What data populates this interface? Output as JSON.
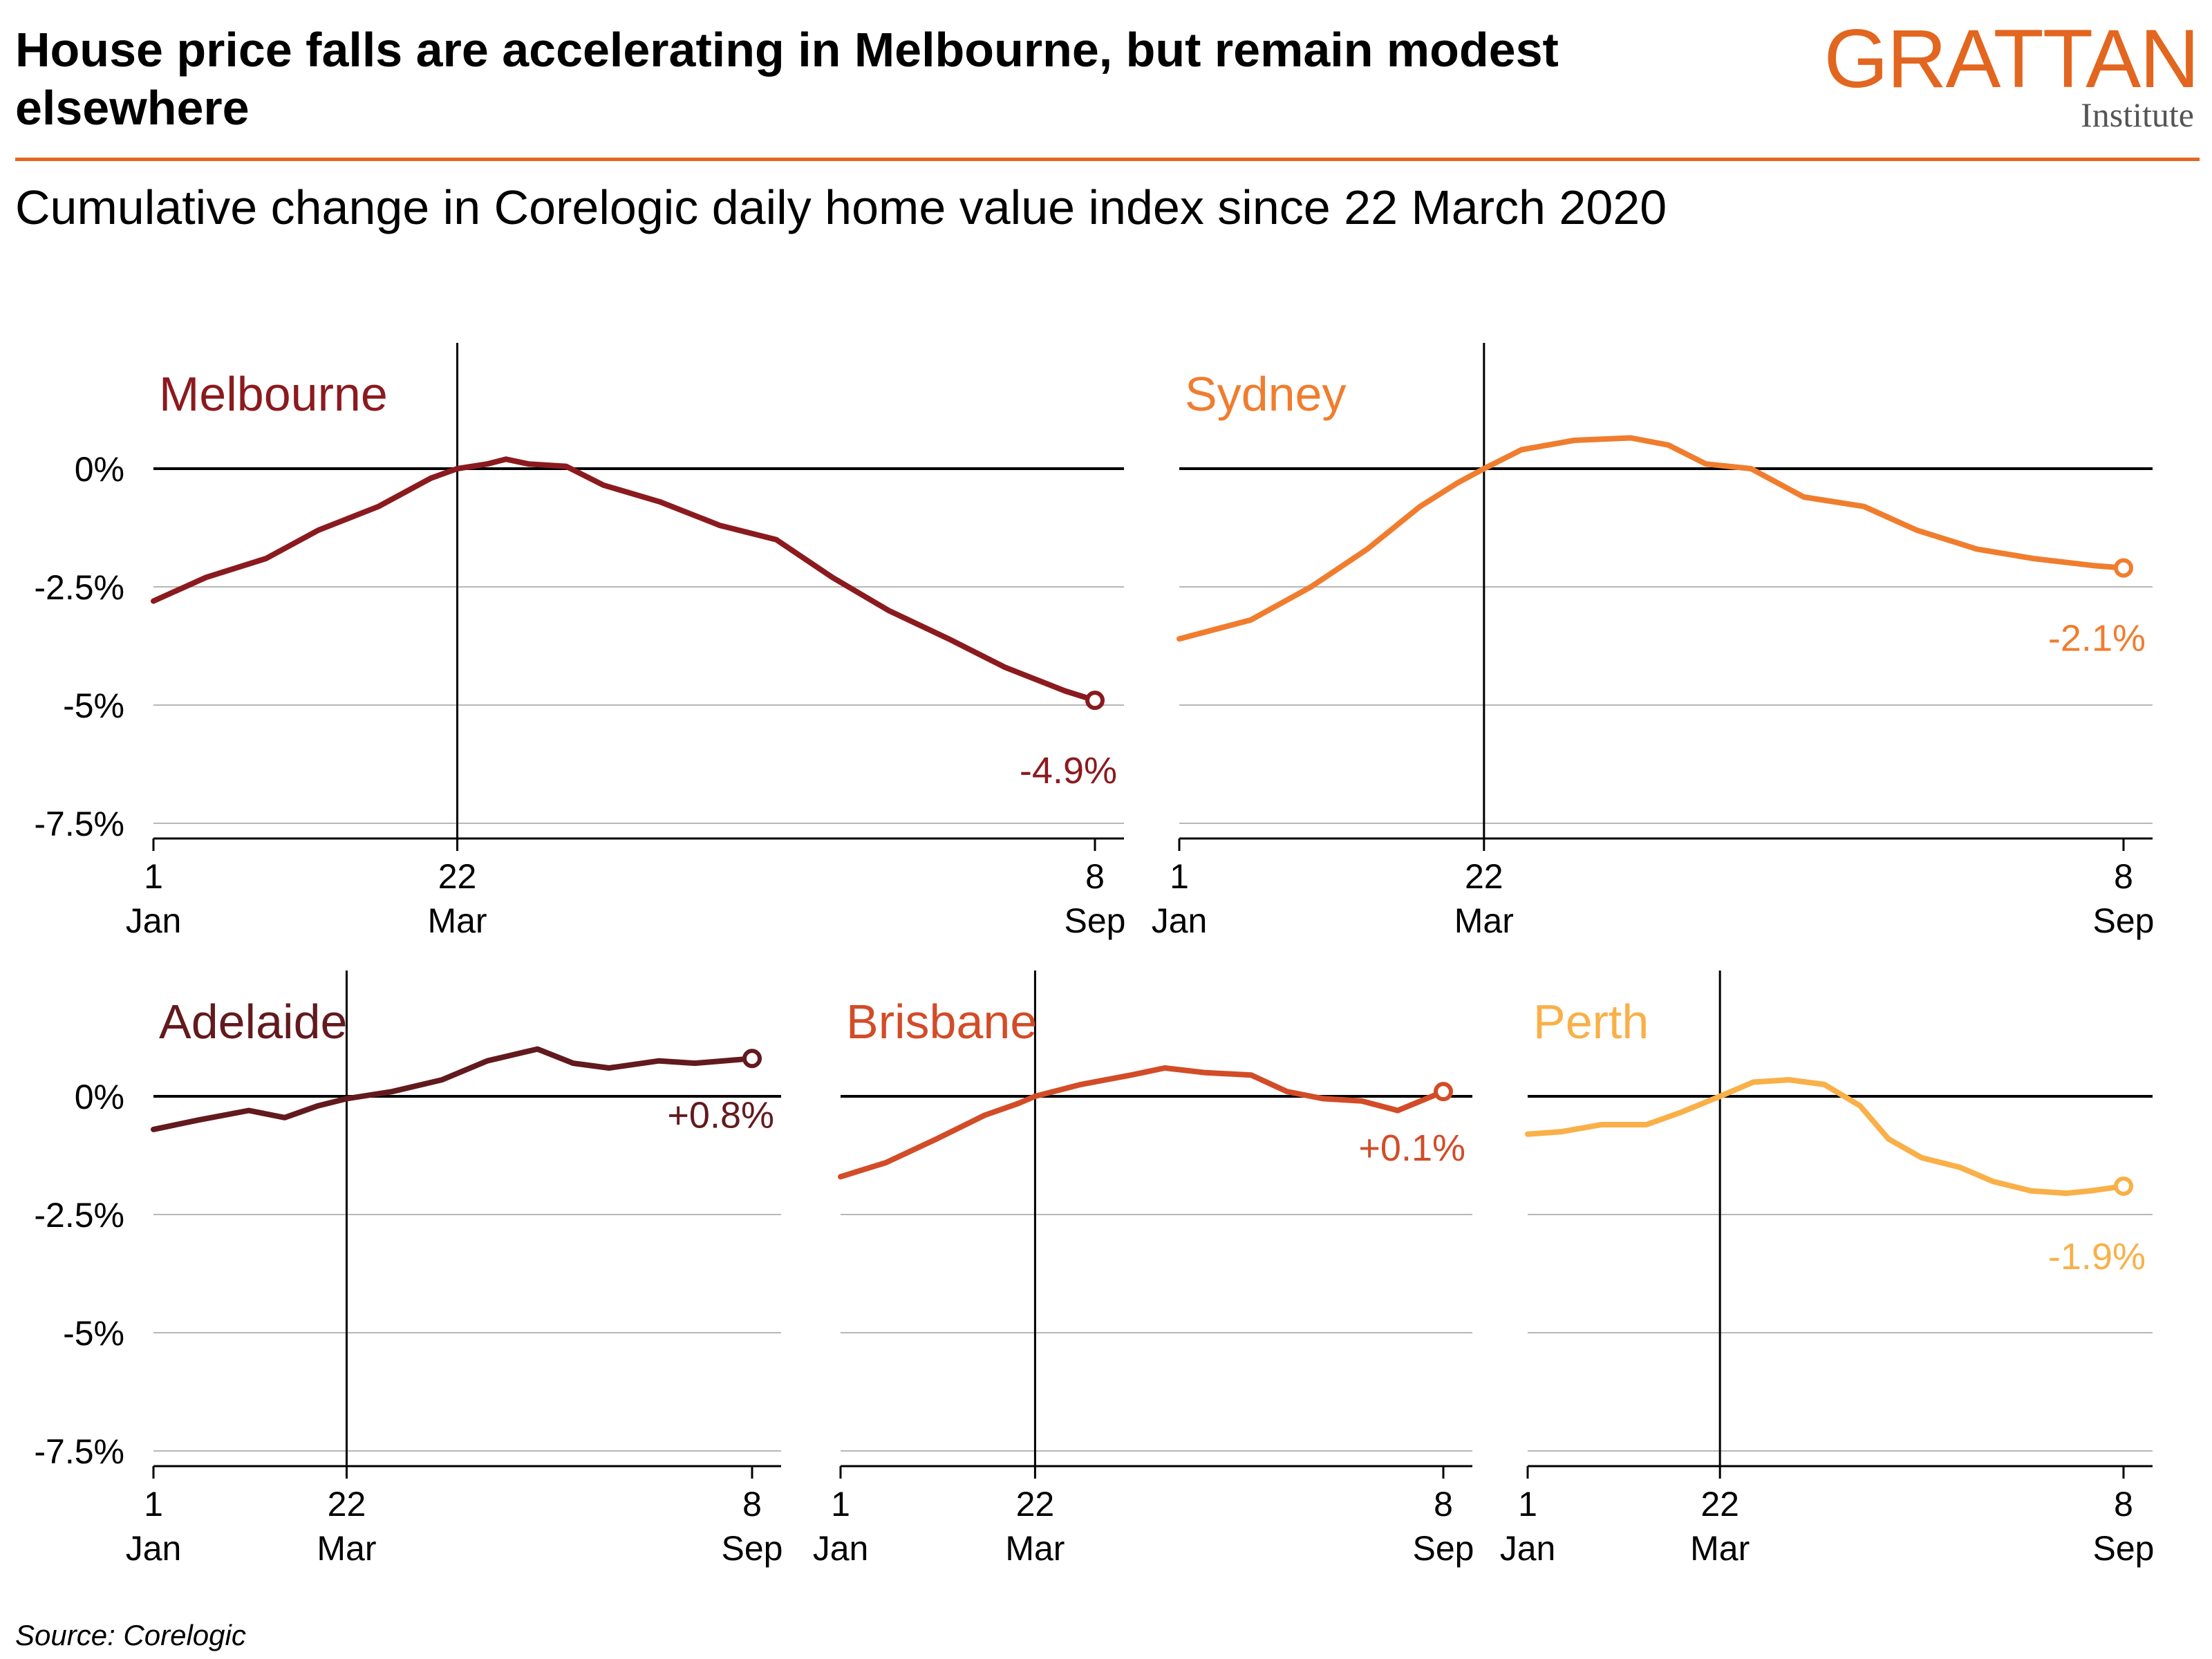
{
  "header": {
    "title": "House price falls are accelerating in Melbourne, but remain modest elsewhere",
    "subtitle": "Cumulative change in Corelogic daily home value index since 22 March 2020",
    "logo_main": "GRATTAN",
    "logo_sub": "Institute",
    "source": "Source: Corelogic"
  },
  "chart_data": [
    {
      "type": "line",
      "title": "Melbourne",
      "color": "#8b1a1e",
      "x_ticks": [
        {
          "x": "2020-01-01",
          "line1": "1",
          "line2": "Jan"
        },
        {
          "x": "2020-03-22",
          "line1": "22",
          "line2": "Mar"
        },
        {
          "x": "2020-09-08",
          "line1": "8",
          "line2": "Sep"
        }
      ],
      "y_ticks": [
        "0%",
        "-2.5%",
        "-5%",
        "-7.5%"
      ],
      "y_tick_values": [
        0,
        -2.5,
        -5,
        -7.5
      ],
      "ylim": [
        -7.5,
        2
      ],
      "reference_date": "2020-03-22",
      "end_label": "-4.9%",
      "series": [
        {
          "x": [
            "2020-01-01",
            "2020-01-15",
            "2020-01-31",
            "2020-02-14",
            "2020-03-01",
            "2020-03-15",
            "2020-03-22",
            "2020-03-30",
            "2020-04-04",
            "2020-04-10",
            "2020-04-20",
            "2020-04-30",
            "2020-05-15",
            "2020-05-31",
            "2020-06-15",
            "2020-06-30",
            "2020-07-15",
            "2020-07-31",
            "2020-08-15",
            "2020-08-31",
            "2020-09-08"
          ],
          "values": [
            -2.8,
            -2.3,
            -1.9,
            -1.3,
            -0.8,
            -0.2,
            0,
            0.1,
            0.2,
            0.1,
            0.05,
            -0.35,
            -0.7,
            -1.2,
            -1.5,
            -2.3,
            -3.0,
            -3.6,
            -4.2,
            -4.7,
            -4.9
          ]
        }
      ]
    },
    {
      "type": "line",
      "title": "Sydney",
      "color": "#f07d2e",
      "x_ticks": [
        {
          "x": "2020-01-01",
          "line1": "1",
          "line2": "Jan"
        },
        {
          "x": "2020-03-22",
          "line1": "22",
          "line2": "Mar"
        },
        {
          "x": "2020-09-08",
          "line1": "8",
          "line2": "Sep"
        }
      ],
      "y_ticks": [
        "0%",
        "-2.5%",
        "-5%",
        "-7.5%"
      ],
      "y_tick_values": [
        0,
        -2.5,
        -5,
        -7.5
      ],
      "ylim": [
        -7.5,
        2
      ],
      "reference_date": "2020-03-22",
      "end_label": "-2.1%",
      "series": [
        {
          "x": [
            "2020-01-01",
            "2020-01-20",
            "2020-02-05",
            "2020-02-20",
            "2020-03-05",
            "2020-03-15",
            "2020-03-22",
            "2020-04-01",
            "2020-04-15",
            "2020-04-30",
            "2020-05-10",
            "2020-05-20",
            "2020-06-01",
            "2020-06-15",
            "2020-07-01",
            "2020-07-15",
            "2020-07-31",
            "2020-08-15",
            "2020-08-31",
            "2020-09-08"
          ],
          "values": [
            -3.6,
            -3.2,
            -2.5,
            -1.7,
            -0.8,
            -0.3,
            0,
            0.4,
            0.6,
            0.65,
            0.5,
            0.1,
            0.0,
            -0.6,
            -0.8,
            -1.3,
            -1.7,
            -1.9,
            -2.05,
            -2.1
          ]
        }
      ]
    },
    {
      "type": "line",
      "title": "Adelaide",
      "color": "#621a1e",
      "x_ticks": [
        {
          "x": "2020-01-01",
          "line1": "1",
          "line2": "Jan"
        },
        {
          "x": "2020-03-22",
          "line1": "22",
          "line2": "Mar"
        },
        {
          "x": "2020-09-08",
          "line1": "8",
          "line2": "Sep"
        }
      ],
      "y_ticks": [
        "0%",
        "-2.5%",
        "-5%",
        "-7.5%"
      ],
      "y_tick_values": [
        0,
        -2.5,
        -5,
        -7.5
      ],
      "ylim": [
        -7.5,
        2
      ],
      "reference_date": "2020-03-22",
      "end_label": "+0.8%",
      "series": [
        {
          "x": [
            "2020-01-01",
            "2020-01-20",
            "2020-02-10",
            "2020-02-25",
            "2020-03-10",
            "2020-03-22",
            "2020-04-10",
            "2020-05-01",
            "2020-05-20",
            "2020-06-10",
            "2020-06-25",
            "2020-07-10",
            "2020-07-31",
            "2020-08-15",
            "2020-09-08"
          ],
          "values": [
            -0.7,
            -0.5,
            -0.3,
            -0.45,
            -0.2,
            -0.05,
            0.1,
            0.35,
            0.75,
            1.0,
            0.7,
            0.6,
            0.75,
            0.7,
            0.8
          ]
        }
      ]
    },
    {
      "type": "line",
      "title": "Brisbane",
      "color": "#d24c27",
      "x_ticks": [
        {
          "x": "2020-01-01",
          "line1": "1",
          "line2": "Jan"
        },
        {
          "x": "2020-03-22",
          "line1": "22",
          "line2": "Mar"
        },
        {
          "x": "2020-09-08",
          "line1": "8",
          "line2": "Sep"
        }
      ],
      "y_ticks": [
        "0%",
        "-2.5%",
        "-5%",
        "-7.5%"
      ],
      "y_tick_values": [
        0,
        -2.5,
        -5,
        -7.5
      ],
      "ylim": [
        -7.5,
        2
      ],
      "reference_date": "2020-03-22",
      "end_label": "+0.1%",
      "series": [
        {
          "x": [
            "2020-01-01",
            "2020-01-20",
            "2020-02-10",
            "2020-03-01",
            "2020-03-15",
            "2020-03-22",
            "2020-04-10",
            "2020-05-01",
            "2020-05-15",
            "2020-06-01",
            "2020-06-20",
            "2020-07-05",
            "2020-07-20",
            "2020-08-05",
            "2020-08-20",
            "2020-09-08"
          ],
          "values": [
            -1.7,
            -1.4,
            -0.9,
            -0.4,
            -0.15,
            0,
            0.25,
            0.45,
            0.6,
            0.5,
            0.45,
            0.1,
            -0.05,
            -0.1,
            -0.3,
            0.1
          ]
        }
      ]
    },
    {
      "type": "line",
      "title": "Perth",
      "color": "#f9b048",
      "x_ticks": [
        {
          "x": "2020-01-01",
          "line1": "1",
          "line2": "Jan"
        },
        {
          "x": "2020-03-22",
          "line1": "22",
          "line2": "Mar"
        },
        {
          "x": "2020-09-08",
          "line1": "8",
          "line2": "Sep"
        }
      ],
      "y_ticks": [
        "0%",
        "-2.5%",
        "-5%",
        "-7.5%"
      ],
      "y_tick_values": [
        0,
        -2.5,
        -5,
        -7.5
      ],
      "ylim": [
        -7.5,
        2
      ],
      "reference_date": "2020-03-22",
      "end_label": "-1.9%",
      "series": [
        {
          "x": [
            "2020-01-01",
            "2020-01-15",
            "2020-02-01",
            "2020-02-20",
            "2020-03-05",
            "2020-03-22",
            "2020-04-05",
            "2020-04-20",
            "2020-05-05",
            "2020-05-20",
            "2020-06-01",
            "2020-06-15",
            "2020-07-01",
            "2020-07-15",
            "2020-07-31",
            "2020-08-15",
            "2020-08-25",
            "2020-09-08"
          ],
          "values": [
            -0.8,
            -0.75,
            -0.6,
            -0.6,
            -0.35,
            0,
            0.3,
            0.35,
            0.25,
            -0.2,
            -0.9,
            -1.3,
            -1.5,
            -1.8,
            -2.0,
            -2.05,
            -2.0,
            -1.9
          ]
        }
      ]
    }
  ]
}
